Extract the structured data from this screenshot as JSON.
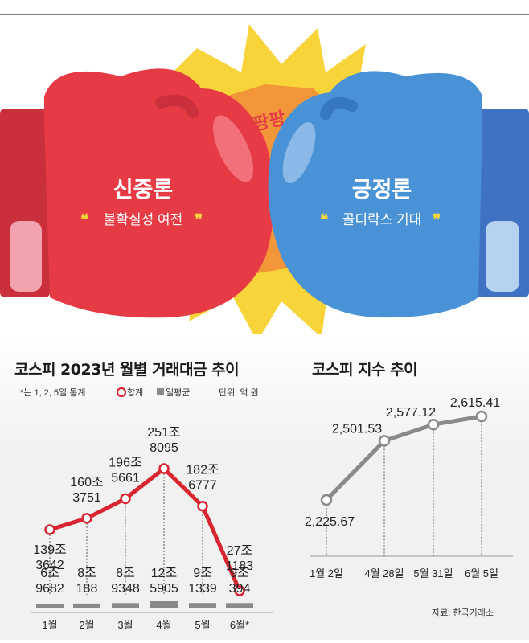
{
  "hero": {
    "left_title": "신중론",
    "left_quote": "불확실성 여전",
    "right_title": "긍정론",
    "right_quote": "골디락스 기대",
    "burst_text": "팡팡",
    "colors": {
      "red": "#e63b45",
      "blue": "#4a92d6",
      "burst": "#f7d43a",
      "center": "#f3963a"
    }
  },
  "chart_data": [
    {
      "type": "line",
      "title": "코스피 2023년 월별 거래대금 추이",
      "note": "*는 1, 2, 5일 통계",
      "legend": {
        "total": "합계",
        "avg": "일평균"
      },
      "unit": "단위: 억 원",
      "categories": [
        "1월",
        "2월",
        "3월",
        "4월",
        "5월",
        "6월*"
      ],
      "series": [
        {
          "name": "합계",
          "values": [
            1393642,
            1603751,
            1965661,
            2518095,
            1826777,
            271183
          ],
          "labels": [
            [
              "139조",
              "3642"
            ],
            [
              "160조",
              "3751"
            ],
            [
              "196조",
              "5661"
            ],
            [
              "251조",
              "8095"
            ],
            [
              "182조",
              "6777"
            ],
            [
              "27조",
              "1183"
            ]
          ]
        },
        {
          "name": "일평균",
          "values": [
            69682,
            80188,
            89348,
            125905,
            91339,
            90394
          ],
          "labels": [
            [
              "6조",
              "9682"
            ],
            [
              "8조",
              "188"
            ],
            [
              "8조",
              "9348"
            ],
            [
              "12조",
              "5905"
            ],
            [
              "9조",
              "1339"
            ],
            [
              "9조",
              "394"
            ]
          ]
        }
      ],
      "colors": {
        "line": "#d8252f",
        "avg_bar": "#8a8a8a"
      }
    },
    {
      "type": "line",
      "title": "코스피 지수 추이",
      "categories": [
        "1월 2일",
        "4월 28일",
        "5월 31일",
        "6월 5일"
      ],
      "values": [
        2225.67,
        2501.53,
        2577.12,
        2615.41
      ],
      "labels": [
        "2,225.67",
        "2,501.53",
        "2,577.12",
        "2,615.41"
      ],
      "source": "자료: 한국거래소",
      "colors": {
        "line": "#8a8a8a"
      }
    }
  ]
}
